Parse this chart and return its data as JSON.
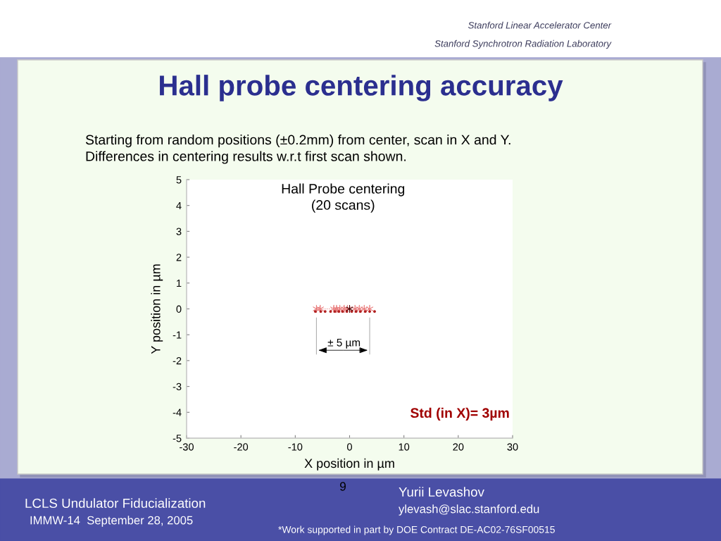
{
  "chart_data": {
    "type": "scatter",
    "title": "Hall probe centering accuracy",
    "subtitle": "Starting from random positions (±0.2mm) from center, scan in X and Y.\nDifferences in centering results w.r.t first scan shown.",
    "xlabel": "X position in µm",
    "ylabel": "Y position in µm",
    "xlim": [
      -30,
      30
    ],
    "ylim": [
      -5,
      5
    ],
    "xticks": [
      -30,
      -20,
      -10,
      0,
      10,
      20,
      30
    ],
    "yticks": [
      -5,
      -4,
      -3,
      -2,
      -1,
      0,
      1,
      2,
      3,
      4,
      5
    ],
    "series": [
      {
        "type": "line",
        "color": "#e87878",
        "marker": "cross",
        "line_style": "dotted",
        "x": [
          -6.1,
          -5.4,
          -2.9,
          -2.4,
          -1.8,
          -1.0,
          -0.4,
          1.0,
          1.8,
          2.7,
          3.7
        ],
        "values": [
          0,
          0,
          0,
          0,
          0,
          0,
          0,
          0,
          0,
          0,
          0
        ]
      },
      {
        "color": "#b22222",
        "marker": "circle",
        "x": [
          -6.3,
          -5.3,
          -4.5,
          -3.5,
          -2.7,
          -2.0,
          -1.3,
          -0.5,
          0.4,
          1.2,
          2.0,
          2.9,
          3.7,
          4.6
        ],
        "values": [
          -0.1,
          -0.1,
          -0.1,
          -0.1,
          -0.1,
          -0.1,
          -0.1,
          -0.1,
          -0.1,
          -0.1,
          -0.1,
          -0.1,
          -0.1,
          -0.1
        ]
      },
      {
        "color": "#4a0000",
        "marker": "cross",
        "x": [
          0
        ],
        "values": [
          0
        ]
      }
    ],
    "annotations": [
      "Hall Probe centering\n(20 scans)",
      "± 5 µm",
      "Std (in X)= 3µm",
      "Stanford Linear Accelerator Center",
      "Stanford Synchrotron Radiation Laboratory",
      "9",
      "Yurii Levashov",
      "ylevash@slac.stanford.edu",
      "LCLS Undulator Fiducialization",
      "IMMW-14  September 28, 2005",
      "*Work supported in part by DOE Contract DE-AC02-76SF00515"
    ]
  }
}
